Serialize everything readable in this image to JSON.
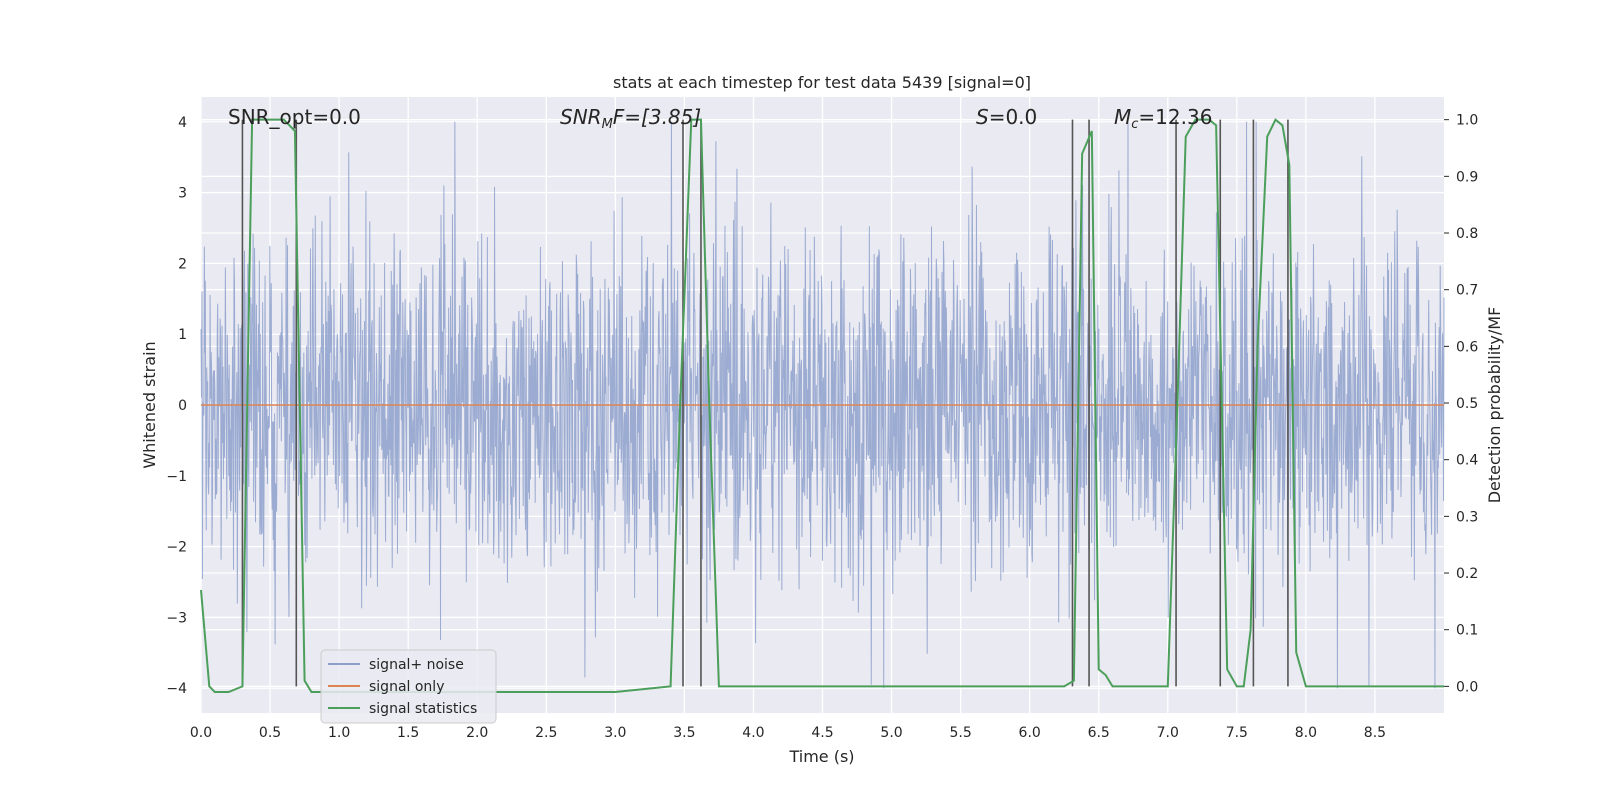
{
  "chart_data": {
    "type": "line",
    "title": "stats at each timestep for test data 5439 [signal=0]",
    "xlabel": "Time (s)",
    "ylabel": "Whitened strain",
    "ylabel_right": "Detection probability/MF",
    "xlim": [
      0,
      9
    ],
    "ylim": [
      -4.35,
      4.35
    ],
    "ylim_right": [
      -0.047,
      1.04
    ],
    "x_ticks": [
      "0.0",
      "0.5",
      "1.0",
      "1.5",
      "2.0",
      "2.5",
      "3.0",
      "3.5",
      "4.0",
      "4.5",
      "5.0",
      "5.5",
      "6.0",
      "6.5",
      "7.0",
      "7.5",
      "8.0",
      "8.5"
    ],
    "y_ticks": [
      "4",
      "3",
      "2",
      "1",
      "0",
      "−1",
      "−2",
      "−3",
      "−4"
    ],
    "y_ticks_right": [
      "1.0",
      "0.9",
      "0.8",
      "0.7",
      "0.6",
      "0.5",
      "0.4",
      "0.3",
      "0.2",
      "0.1",
      "0.0"
    ],
    "grid": true,
    "legend_position": "bottom-left",
    "annotations": {
      "snr_opt": "SNR_opt=0.0",
      "snr_mf_main": "SNR",
      "snr_mf_sub": "M",
      "snr_mf_rest": "F=[3.85]",
      "s_main": "S",
      "s_rest": "=0.0",
      "mc_main": "M",
      "mc_sub": "c",
      "mc_rest": "=12.36"
    },
    "series": [
      {
        "name": "signal+ noise",
        "color": "#8da0cb",
        "description_type": "noise",
        "amplitude_typical": 1.5,
        "amplitude_peak": 4.0
      },
      {
        "name": "signal only",
        "color": "#dd8452",
        "x": [
          0,
          9
        ],
        "y": [
          0,
          0
        ]
      },
      {
        "name": "signal statistics",
        "color": "#4c9f5b",
        "axis": "right",
        "x": [
          0.0,
          0.06,
          0.1,
          0.2,
          0.3,
          0.37,
          0.4,
          0.5,
          0.6,
          0.68,
          0.75,
          0.8,
          1.0,
          2.0,
          3.0,
          3.4,
          3.47,
          3.55,
          3.62,
          3.68,
          3.75,
          4.0,
          5.0,
          6.0,
          6.25,
          6.32,
          6.38,
          6.45,
          6.5,
          6.55,
          6.6,
          7.0,
          7.07,
          7.13,
          7.2,
          7.3,
          7.35,
          7.43,
          7.5,
          7.55,
          7.6,
          7.65,
          7.72,
          7.78,
          7.83,
          7.88,
          7.93,
          8.0,
          8.5,
          9.0
        ],
        "y": [
          0.17,
          0.0,
          -0.01,
          -0.01,
          0.0,
          1.0,
          1.0,
          1.0,
          1.0,
          0.98,
          0.01,
          -0.01,
          -0.01,
          -0.01,
          -0.01,
          0.0,
          0.5,
          1.0,
          1.0,
          0.5,
          0.0,
          0.0,
          0.0,
          0.0,
          0.0,
          0.01,
          0.94,
          0.98,
          0.03,
          0.02,
          0.0,
          0.0,
          0.5,
          0.97,
          1.0,
          1.0,
          0.99,
          0.03,
          0.0,
          0.0,
          0.1,
          0.6,
          0.97,
          1.0,
          0.99,
          0.92,
          0.06,
          0.0,
          0.0,
          0.0
        ]
      }
    ],
    "vertical_lines_x": [
      0.3,
      0.69,
      3.49,
      3.62,
      6.31,
      6.43,
      7.06,
      7.38,
      7.62,
      7.87
    ]
  }
}
